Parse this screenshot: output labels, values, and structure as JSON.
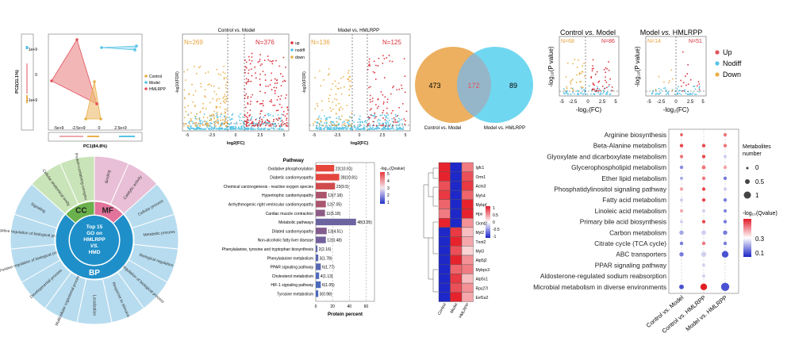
{
  "pca": {
    "xlabel": "PC1(84.8%)",
    "ylabel": "PC2(11.1%)",
    "xticks": [
      "-5e+9",
      "-2.5e+9",
      "0",
      "2.5e+9"
    ],
    "yticks": [
      "1e+9",
      "0",
      "-1e+9"
    ],
    "legend": [
      {
        "label": "Control",
        "color": "#e9b04a"
      },
      {
        "label": "Model",
        "color": "#55c3e6"
      },
      {
        "label": "HMLRPP",
        "color": "#e2525c"
      }
    ]
  },
  "volcano1": {
    "title": "Control vs. Model",
    "n_left": "N=269",
    "n_right": "N=376",
    "ylabel": "-log10(FDR)",
    "xlabel": "log2(FC)",
    "xticks": [
      "-5",
      "-2.5",
      "0",
      "2.5",
      "5"
    ],
    "legend": [
      {
        "label": "up",
        "color": "#d9303c"
      },
      {
        "label": "nodiff",
        "color": "#55c3e6"
      },
      {
        "label": "down",
        "color": "#e9b04a"
      }
    ]
  },
  "volcano2": {
    "title": "Model vs. HMLRPP",
    "n_left": "N=136",
    "n_right": "N=125",
    "ylabel": "-log10(FDR)",
    "xlabel": "log2(FC)",
    "xticks": [
      "-5",
      "-2.5",
      "0",
      "2.5",
      "5"
    ]
  },
  "venn": {
    "left_value": "473",
    "overlap_value": "172",
    "right_value": "89",
    "left_label": "Control vs. Model",
    "right_label": "Model vs. HMLRPP",
    "left_color": "#ecb060",
    "right_color": "#57d0ee",
    "overlap_color": "#e2525c"
  },
  "metab_volcano1": {
    "title_a": "Control ",
    "title_b": "vs.",
    "title_c": " Model",
    "n_left": "N=68",
    "n_right": "N=86",
    "ylabel": "-log₁₀(P value)",
    "xlabel": "-log₂(FC)",
    "xticks": [
      "-5",
      "-2.5",
      "0",
      "2.5",
      "5"
    ]
  },
  "metab_volcano2": {
    "title_a": "Model ",
    "title_b": "vs.",
    "title_c": " HMLRPP",
    "n_left": "N=14",
    "n_right": "N=51",
    "ylabel": "-log₁₀(P value)",
    "xlabel": "-log₂(FC)",
    "xticks": [
      "-5",
      "-2.5",
      "0",
      "2.5",
      "5"
    ],
    "legend": [
      {
        "label": "Up",
        "color": "#e2525c"
      },
      {
        "label": "Nodiff",
        "color": "#55c3e6"
      },
      {
        "label": "Down",
        "color": "#e9b04a"
      }
    ]
  },
  "go_wheel": {
    "center_lines": [
      "Top 15",
      "GO on",
      "HMLRPP",
      "VS.",
      "HMD"
    ],
    "categories": [
      {
        "code": "MF",
        "color": "#e2739b",
        "light": "#e8bfd6"
      },
      {
        "code": "BP",
        "color": "#1f8fc9",
        "light": "#b7dcef"
      },
      {
        "code": "CC",
        "color": "#6ab04c",
        "light": "#c9e4b8"
      }
    ],
    "mf_terms": [
      "Binding",
      "Catalytic activity"
    ],
    "bp_terms": [
      "Cellular process",
      "Metabolic process",
      "Biological regulation",
      "Regulation of biological process",
      "Response to stimulus",
      "Localization",
      "Multicellular organismal process",
      "Developmental process",
      "Positive regulation of biological process",
      "Negative regulation of biological process",
      "Signaling"
    ],
    "cc_terms": [
      "Cellular anatomical entity",
      "Protein-containing complex"
    ]
  },
  "kegg_bar": {
    "header": "Pathway",
    "xlabel": "Protein percent",
    "xticks": [
      "0",
      "20",
      "40",
      "60"
    ],
    "xlim": [
      0,
      70
    ],
    "legend_title": "-log₁₀(Qvalue)",
    "legend_ticks": [
      "5",
      "4",
      "3",
      "2",
      "1"
    ],
    "rows": [
      {
        "name": "Oxidative phosphorylation",
        "count": 22,
        "label": "22(10.91)",
        "percent": 22
      },
      {
        "name": "Diabetic cardiomyopathy",
        "count": 28,
        "label": "28(10.81)",
        "percent": 28
      },
      {
        "name": "Chemical carcinogenesis - reactive oxygen species",
        "count": 23,
        "label": "23(9.5)",
        "percent": 23
      },
      {
        "name": "Hypertrophic cardiomyopathy",
        "count": 13,
        "label": "13(7.18)",
        "percent": 13
      },
      {
        "name": "Arrhythmogenic right ventricular cardiomyopathy",
        "count": 12,
        "label": "12(7.05)",
        "percent": 12
      },
      {
        "name": "Cardiac muscle contraction",
        "count": 11,
        "label": "11(5.18)",
        "percent": 11
      },
      {
        "name": "Metabolic pathways",
        "count": 48,
        "label": "48(3.05)",
        "percent": 48
      },
      {
        "name": "Dilated cardiomyopathy",
        "count": 13,
        "label": "13(4.51)",
        "percent": 13
      },
      {
        "name": "Non-alcoholic fatty liver disease",
        "count": 12,
        "label": "12(3.48)",
        "percent": 12
      },
      {
        "name": "Phenylalanine, tyrosine and tryptophan biosynthesis",
        "count": 2,
        "label": "2(2.16)",
        "percent": 2
      },
      {
        "name": "Phenylalanine metabolism",
        "count": 3,
        "label": "3(1.78)",
        "percent": 3
      },
      {
        "name": "PPAR signaling pathway",
        "count": 6,
        "label": "6(1.77)",
        "percent": 6
      },
      {
        "name": "Cholesterol metabolism",
        "count": 4,
        "label": "4(1.13)",
        "percent": 4
      },
      {
        "name": "HIF-1 signaling pathway",
        "count": 6,
        "label": "6(1.05)",
        "percent": 6
      },
      {
        "name": "Tyrosine metabolism",
        "count": 3,
        "label": "3(0.98)",
        "percent": 3
      }
    ]
  },
  "heatmap": {
    "genes": [
      "Igfc1",
      "Orm1",
      "Actn3",
      "Myh4",
      "Mybpf",
      "Hpx",
      "Ckmt2",
      "Myl2",
      "Tnnt2",
      "Myl3",
      "Atp5j2",
      "Mybpc3",
      "Atp5c1",
      "Rps27l",
      "Eef1a2"
    ],
    "columns": [
      "Control",
      "Model",
      "HMLRPP"
    ],
    "legend_ticks": [
      "1",
      "0.5",
      "0",
      "-0.5",
      "-1"
    ],
    "values": [
      [
        1,
        -1,
        0.6
      ],
      [
        1,
        -1,
        0.8
      ],
      [
        0.8,
        -1,
        0.9
      ],
      [
        0.9,
        -1,
        0.7
      ],
      [
        0.7,
        -1,
        1
      ],
      [
        0.6,
        -1,
        1
      ],
      [
        1,
        -1,
        0.5
      ],
      [
        -1,
        0.9,
        0.3
      ],
      [
        -1,
        1,
        0.4
      ],
      [
        -1,
        0.8,
        0.2
      ],
      [
        -1,
        1,
        0.5
      ],
      [
        -1,
        0.7,
        0.6
      ],
      [
        -1,
        0.9,
        0.3
      ],
      [
        -1,
        0.8,
        0.5
      ],
      [
        -1,
        1,
        0.4
      ]
    ]
  },
  "bubble": {
    "pathways": [
      "Arginine biosynthesis",
      "Beta-Alanine metabolism",
      "Glyoxylate and dicarboxylate metabolism",
      "Glycerophospholipid metabolism",
      "Ether lipid metabolism",
      "Phosphatidylinositol signaling pathway",
      "Fatty acid metabolism",
      "Linoleic acid metabolism",
      "Primary bile acid biosynthesis",
      "Carbon metabolism",
      "Citrate cycle (TCA cycle)",
      "ABC transporters",
      "PPAR signaling pathway",
      "Aldosterone-regulated sodium reabsorption",
      "Microbial metabolism in diverse environments"
    ],
    "columns": [
      "Control vs. Model",
      "Control vs. HMLRPP",
      "Model vs. HMLRPP"
    ],
    "size_title_lines": [
      "Metabolites",
      "number"
    ],
    "size_ticks": [
      "0",
      "0.5",
      "1"
    ],
    "color_title": "-log₁₀(Qvalue)",
    "color_ticks": [
      "0.3",
      "0.1"
    ],
    "cells": [
      [
        [
          0.1,
          0.4
        ],
        null,
        [
          0.2,
          0.35
        ]
      ],
      [
        [
          0.2,
          0.4
        ],
        [
          0.2,
          0.4
        ],
        [
          0.2,
          0.35
        ]
      ],
      [
        [
          0.2,
          0.35
        ],
        [
          0.2,
          0.4
        ],
        [
          0.2,
          0.2
        ]
      ],
      [
        [
          0.2,
          0.12
        ],
        [
          0.25,
          0.35
        ],
        [
          0.2,
          0.3
        ]
      ],
      [
        [
          0.15,
          0.15
        ],
        [
          0.2,
          0.35
        ],
        [
          0.2,
          0.1
        ]
      ],
      [
        [
          0.2,
          0.3
        ],
        [
          0.2,
          0.4
        ],
        [
          0.2,
          0.2
        ]
      ],
      [
        [
          0.2,
          0.2
        ],
        [
          0.2,
          0.4
        ],
        [
          0.2,
          0.1
        ]
      ],
      [
        [
          0.15,
          0.3
        ],
        [
          0.15,
          0.2
        ],
        [
          0.15,
          0.1
        ]
      ],
      [
        [
          0.15,
          0.2
        ],
        [
          0.2,
          0.4
        ],
        [
          0.2,
          0.1
        ]
      ],
      [
        [
          0.3,
          0.15
        ],
        [
          0.35,
          0.2
        ],
        [
          0.3,
          0.1
        ]
      ],
      [
        [
          0.2,
          0.1
        ],
        [
          0.2,
          0.35
        ],
        [
          0.2,
          0.1
        ]
      ],
      [
        [
          0.3,
          0.1
        ],
        [
          0.4,
          0.2
        ],
        [
          0.6,
          0.05
        ]
      ],
      [
        null,
        [
          0.15,
          0.2
        ],
        null
      ],
      [
        null,
        [
          0.15,
          0.2
        ],
        null
      ],
      [
        [
          0.35,
          0.05
        ],
        [
          0.6,
          0.45
        ],
        [
          0.8,
          0.05
        ]
      ]
    ]
  }
}
